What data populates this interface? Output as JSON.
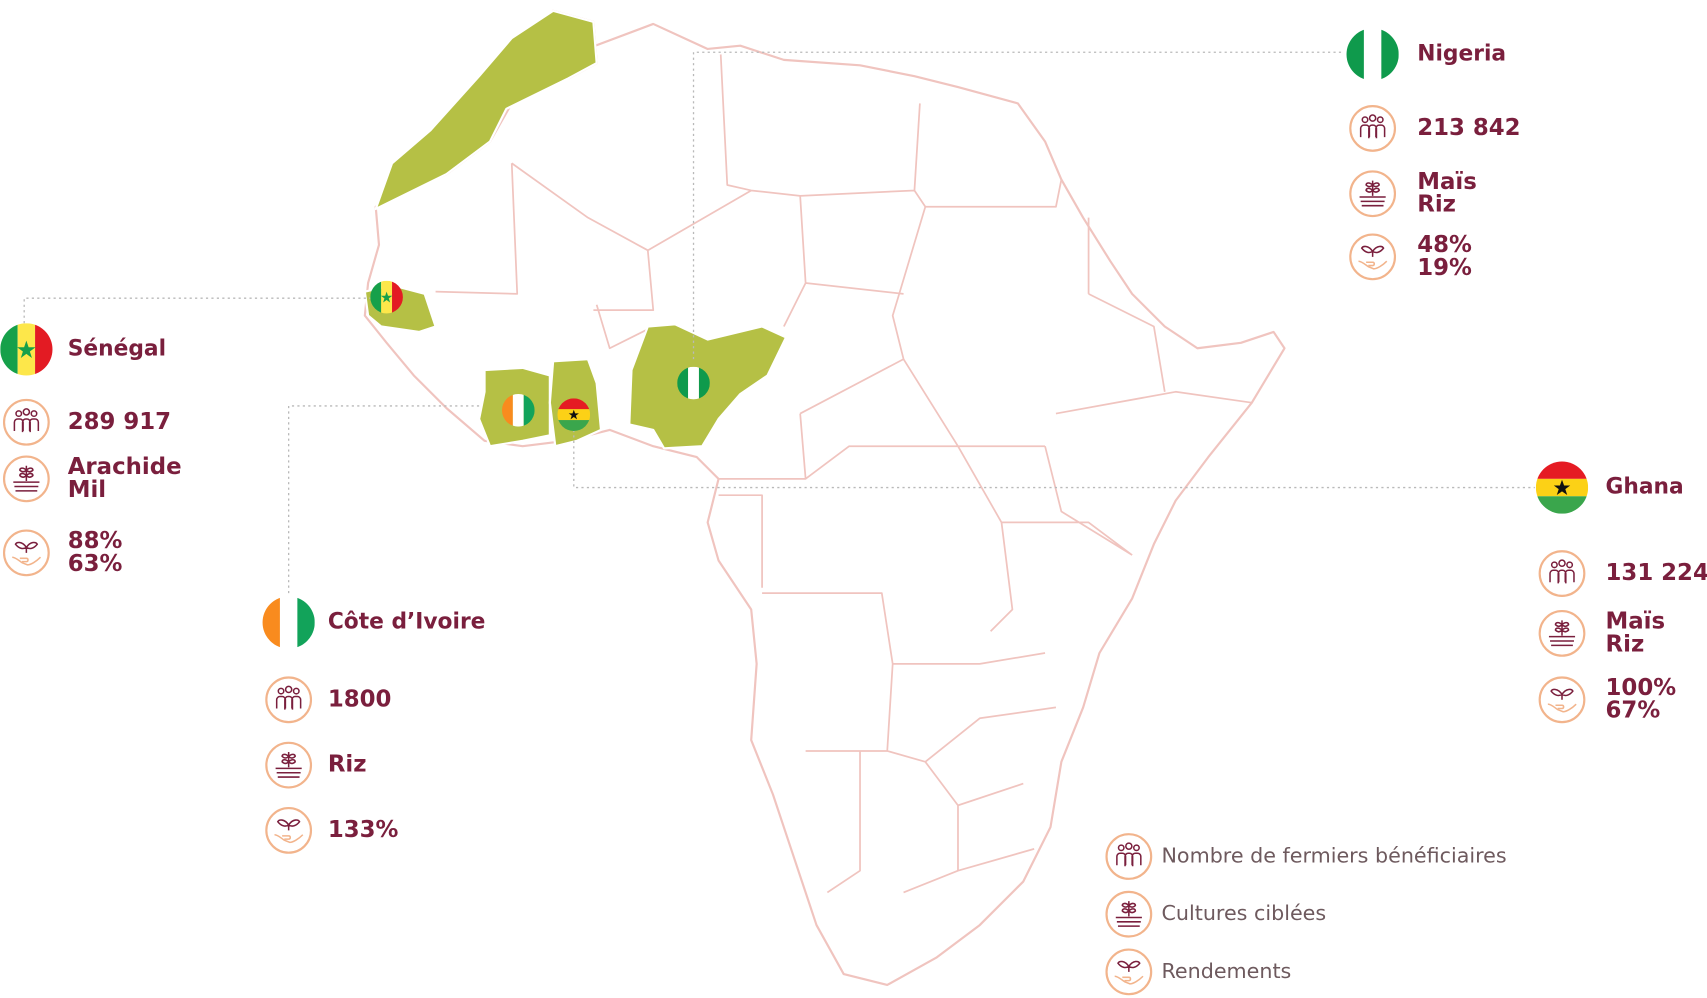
{
  "countries": [
    {
      "name": "Sénégal",
      "farmers": "289 917",
      "crops": [
        "Arachide",
        "Mil"
      ],
      "yields": [
        "88%",
        "63%"
      ]
    },
    {
      "name": "Côte d’Ivoire",
      "farmers": "1800",
      "crops": [
        "Riz"
      ],
      "yields": [
        "133%"
      ]
    },
    {
      "name": "Nigeria",
      "farmers": "213 842",
      "crops": [
        "Maïs",
        "Riz"
      ],
      "yields": [
        "48%",
        "19%"
      ]
    },
    {
      "name": "Ghana",
      "farmers": "131 224",
      "crops": [
        "Maïs",
        "Riz"
      ],
      "yields": [
        "100%",
        "67%"
      ]
    }
  ],
  "legend": [
    "Nombre de fermiers bénéficiaires",
    "Cultures ciblées",
    "Rendements"
  ]
}
